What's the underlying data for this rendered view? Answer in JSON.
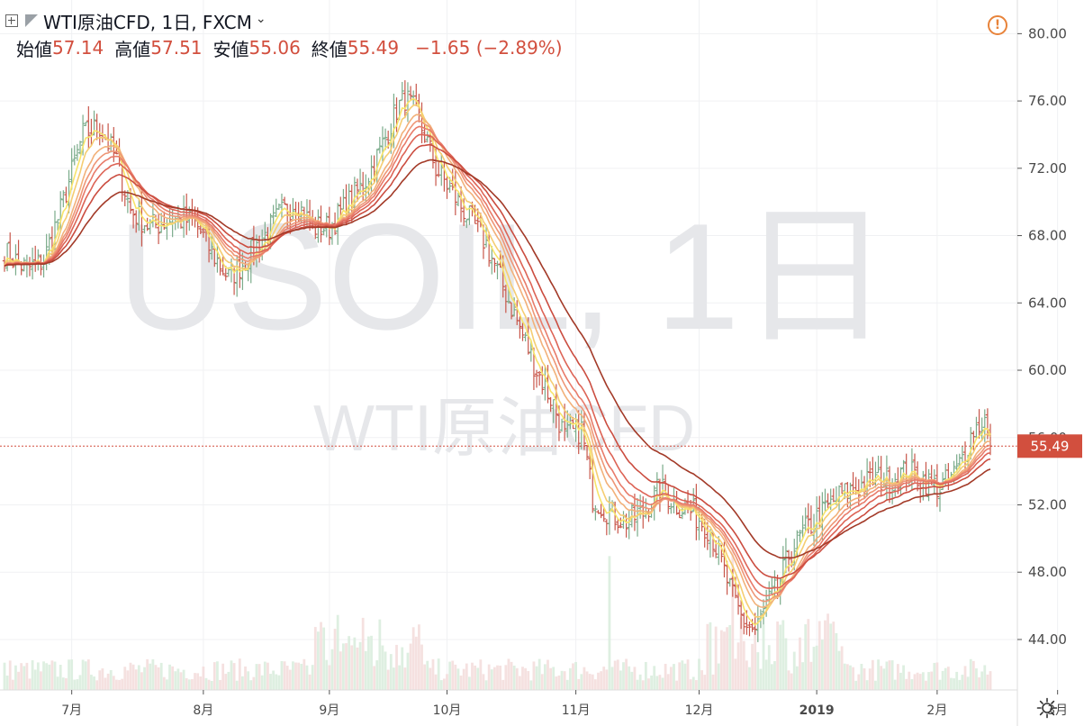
{
  "header": {
    "symbol_title": "WTI原油CFD, 1日, FXCM",
    "open_label": "始値",
    "open_value": "57.14",
    "high_label": "高値",
    "high_value": "57.51",
    "low_label": "安値",
    "low_value": "55.06",
    "close_label": "終値",
    "close_value": "55.49",
    "change": "−1.65 (−2.89%)"
  },
  "watermark": {
    "line1": "USOIL, 1日",
    "line2": "WTI原油CFD"
  },
  "price_label": "55.49",
  "colors": {
    "up": "#7aab8a",
    "down": "#c8564a",
    "ema_palette": [
      "#f7e46a",
      "#f5cd72",
      "#f2b17a",
      "#ee9676",
      "#e87b6a",
      "#dd6456",
      "#cb4d40",
      "#a33a28"
    ],
    "accent_price": "#d24f3e"
  },
  "chart_data": {
    "type": "candlestick",
    "symbol": "USOIL",
    "timeframe": "1日",
    "y_axis": {
      "ticks": [
        44.0,
        48.0,
        52.0,
        56.0,
        60.0,
        64.0,
        68.0,
        72.0,
        76.0,
        80.0
      ],
      "ylim": [
        41.0,
        82.0
      ]
    },
    "x_axis": {
      "ticks": [
        "7月",
        "8月",
        "9月",
        "10月",
        "11月",
        "12月",
        "2019",
        "2月",
        "3月"
      ]
    },
    "last_price": 55.49,
    "anchors": [
      [
        0,
        67.0
      ],
      [
        8,
        66.0
      ],
      [
        14,
        66.5
      ],
      [
        20,
        69.5
      ],
      [
        28,
        74.0
      ],
      [
        34,
        74.5
      ],
      [
        40,
        72.5
      ],
      [
        45,
        69.5
      ],
      [
        52,
        68.5
      ],
      [
        60,
        69.0
      ],
      [
        68,
        68.8
      ],
      [
        74,
        67.0
      ],
      [
        80,
        65.5
      ],
      [
        86,
        66.5
      ],
      [
        92,
        67.8
      ],
      [
        98,
        69.2
      ],
      [
        104,
        70.0
      ],
      [
        110,
        68.5
      ],
      [
        116,
        68.5
      ],
      [
        122,
        69.8
      ],
      [
        128,
        71.0
      ],
      [
        134,
        73.0
      ],
      [
        140,
        75.5
      ],
      [
        143,
        76.2
      ],
      [
        146,
        75.5
      ],
      [
        150,
        74.0
      ],
      [
        154,
        72.0
      ],
      [
        160,
        70.5
      ],
      [
        166,
        69.0
      ],
      [
        172,
        67.5
      ],
      [
        178,
        65.0
      ],
      [
        184,
        62.5
      ],
      [
        190,
        60.0
      ],
      [
        196,
        58.0
      ],
      [
        200,
        56.0
      ],
      [
        206,
        56.5
      ],
      [
        210,
        52.5
      ],
      [
        216,
        51.5
      ],
      [
        222,
        51.0
      ],
      [
        228,
        51.5
      ],
      [
        234,
        53.0
      ],
      [
        240,
        52.0
      ],
      [
        246,
        51.5
      ],
      [
        252,
        50.5
      ],
      [
        256,
        48.5
      ],
      [
        260,
        46.5
      ],
      [
        264,
        45.0
      ],
      [
        268,
        44.5
      ],
      [
        272,
        46.0
      ],
      [
        276,
        47.0
      ],
      [
        280,
        49.0
      ],
      [
        286,
        50.5
      ],
      [
        292,
        51.5
      ],
      [
        298,
        52.5
      ],
      [
        304,
        53.0
      ],
      [
        310,
        53.5
      ],
      [
        316,
        53.5
      ],
      [
        322,
        54.0
      ],
      [
        328,
        53.5
      ],
      [
        334,
        53.0
      ],
      [
        340,
        54.0
      ],
      [
        346,
        56.5
      ],
      [
        350,
        57.0
      ],
      [
        352,
        55.49
      ]
    ],
    "ema_periods": [
      3,
      5,
      8,
      10,
      12,
      15,
      20,
      30
    ]
  }
}
